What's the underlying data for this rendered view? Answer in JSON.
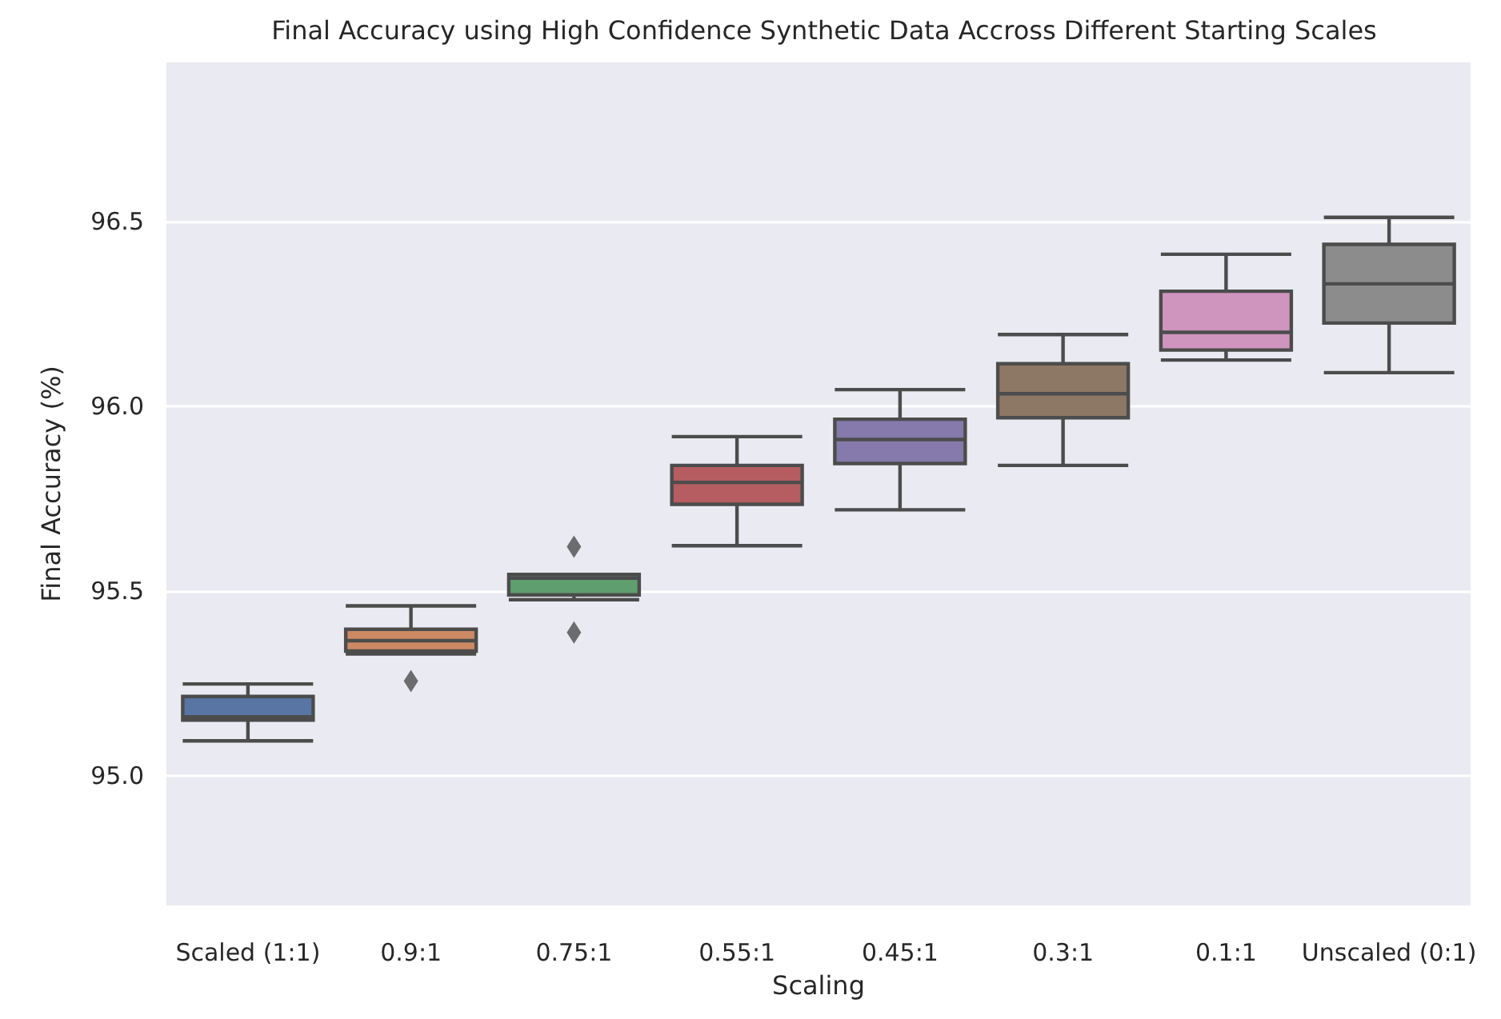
{
  "chart_data": {
    "type": "box",
    "title": "Final Accuracy using High Confidence Synthetic Data Accross Different Starting Scales",
    "xlabel": "Scaling",
    "ylabel": "Final Accuracy (%)",
    "categories": [
      "Scaled (1:1)",
      "0.9:1",
      "0.75:1",
      "0.55:1",
      "0.45:1",
      "0.3:1",
      "0.1:1",
      "Unscaled (0:1)"
    ],
    "colors": [
      "#5875a4",
      "#cc8963",
      "#5f9e6e",
      "#b55d60",
      "#857aab",
      "#8d7866",
      "#d095bf",
      "#8c8c8c"
    ],
    "boxes": [
      {
        "low": 95.095,
        "q1": 95.151,
        "median": 95.16,
        "q3": 95.215,
        "high": 95.249
      },
      {
        "low": 95.33,
        "q1": 95.338,
        "median": 95.366,
        "q3": 95.397,
        "high": 95.46,
        "outliers": [
          95.257
        ]
      },
      {
        "low": 95.477,
        "q1": 95.49,
        "median": 95.535,
        "q3": 95.545,
        "high": 95.545,
        "outliers": [
          95.62,
          95.388
        ]
      },
      {
        "low": 95.623,
        "q1": 95.735,
        "median": 95.794,
        "q3": 95.84,
        "high": 95.918
      },
      {
        "low": 95.72,
        "q1": 95.845,
        "median": 95.91,
        "q3": 95.965,
        "high": 96.045
      },
      {
        "low": 95.84,
        "q1": 95.969,
        "median": 96.034,
        "q3": 96.115,
        "high": 96.194
      },
      {
        "low": 96.125,
        "q1": 96.152,
        "median": 96.2,
        "q3": 96.311,
        "high": 96.411
      },
      {
        "low": 96.091,
        "q1": 96.225,
        "median": 96.331,
        "q3": 96.438,
        "high": 96.511
      }
    ],
    "marker": "diamond",
    "ylim": [
      94.65,
      96.93
    ],
    "yticks": [
      {
        "value": 95,
        "label": "95.0"
      },
      {
        "value": 95.5,
        "label": "95.5"
      },
      {
        "value": 96,
        "label": "96.0"
      },
      {
        "value": 96.5,
        "label": "96.5"
      }
    ],
    "grid": "y"
  }
}
